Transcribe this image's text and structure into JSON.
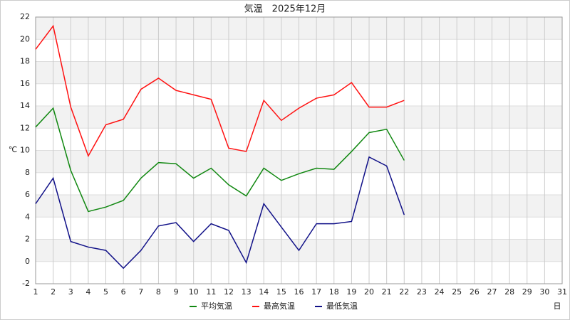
{
  "chart_data": {
    "type": "line",
    "title": "気温　2025年12月",
    "y_label": "℃",
    "x_label": "日",
    "x": [
      1,
      2,
      3,
      4,
      5,
      6,
      7,
      8,
      9,
      10,
      11,
      12,
      13,
      14,
      15,
      16,
      17,
      18,
      19,
      20,
      21,
      22
    ],
    "series": [
      {
        "name": "平均気温",
        "color": "#118811",
        "values": [
          12.1,
          13.8,
          8.2,
          4.5,
          4.9,
          5.5,
          7.5,
          8.9,
          8.8,
          7.5,
          8.4,
          6.9,
          5.9,
          8.4,
          7.3,
          7.9,
          8.4,
          8.3,
          9.9,
          11.6,
          11.9,
          9.1
        ]
      },
      {
        "name": "最高気温",
        "color": "#ff1111",
        "values": [
          19.1,
          21.2,
          13.9,
          9.5,
          12.3,
          12.8,
          15.5,
          16.5,
          15.4,
          15.0,
          14.6,
          10.2,
          9.9,
          14.5,
          12.7,
          13.8,
          14.7,
          15.0,
          16.1,
          13.9,
          13.9,
          14.5
        ]
      },
      {
        "name": "最低気温",
        "color": "#111188",
        "values": [
          5.2,
          7.5,
          1.8,
          1.3,
          1.0,
          -0.6,
          1.0,
          3.2,
          3.5,
          1.8,
          3.4,
          2.8,
          -0.1,
          5.2,
          3.1,
          1.0,
          3.4,
          3.4,
          3.6,
          9.4,
          8.6,
          4.2
        ]
      }
    ],
    "xlim": [
      1,
      31
    ],
    "xticks": [
      1,
      2,
      3,
      4,
      5,
      6,
      7,
      8,
      9,
      10,
      11,
      12,
      13,
      14,
      15,
      16,
      17,
      18,
      19,
      20,
      21,
      22,
      23,
      24,
      25,
      26,
      27,
      28,
      29,
      30,
      31
    ],
    "ylim": [
      -2,
      22
    ],
    "yticks": [
      -2,
      0,
      2,
      4,
      6,
      8,
      10,
      12,
      14,
      16,
      18,
      20,
      22
    ],
    "grid": true,
    "legend": "bottom"
  }
}
